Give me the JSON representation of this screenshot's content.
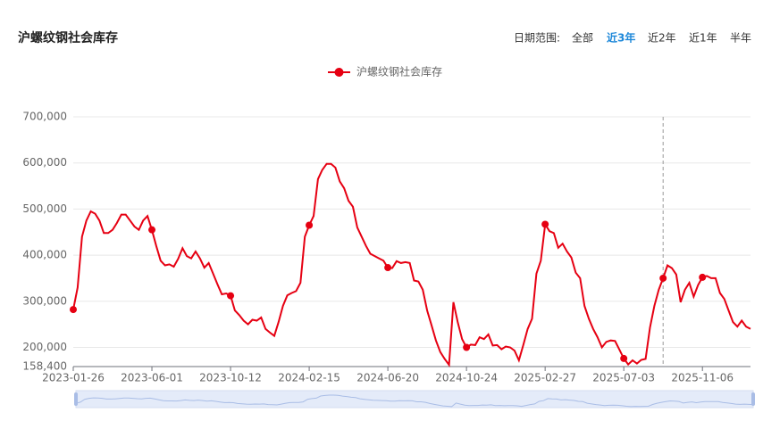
{
  "chart_data": {
    "type": "line",
    "title": "沪螺纹钢社会库存",
    "date_range": {
      "label": "日期范围:",
      "options": [
        "全部",
        "近3年",
        "近2年",
        "近1年",
        "半年"
      ],
      "selected_index": 1
    },
    "categories": [
      "2023-01-26",
      null,
      null,
      null,
      null,
      null,
      null,
      null,
      null,
      null,
      null,
      null,
      null,
      null,
      null,
      null,
      null,
      null,
      "2023-06-01",
      null,
      null,
      null,
      null,
      null,
      null,
      null,
      null,
      null,
      null,
      null,
      null,
      null,
      null,
      null,
      null,
      null,
      "2023-10-12",
      null,
      null,
      null,
      null,
      null,
      null,
      null,
      null,
      null,
      null,
      null,
      null,
      null,
      null,
      null,
      null,
      null,
      "2024-02-15",
      null,
      null,
      null,
      null,
      null,
      null,
      null,
      null,
      null,
      null,
      null,
      null,
      null,
      null,
      null,
      null,
      null,
      "2024-06-20",
      null,
      null,
      null,
      null,
      null,
      null,
      null,
      null,
      null,
      null,
      null,
      null,
      null,
      null,
      null,
      null,
      null,
      "2024-10-24",
      null,
      null,
      null,
      null,
      null,
      null,
      null,
      null,
      null,
      null,
      null,
      null,
      null,
      null,
      null,
      null,
      null,
      "2025-02-27",
      null,
      null,
      null,
      null,
      null,
      null,
      null,
      null,
      null,
      null,
      null,
      null,
      null,
      null,
      null,
      null,
      null,
      "2025-07-03",
      null,
      null,
      null,
      null,
      null,
      null,
      null,
      null,
      null,
      null,
      null,
      null,
      null,
      null,
      null,
      null,
      null,
      "2025-11-06",
      null,
      null,
      null,
      null,
      null,
      null,
      null,
      null,
      null,
      null,
      null
    ],
    "series": [
      {
        "name": "沪螺纹钢社会库存",
        "color": "#e60012",
        "values": [
          282000,
          330000,
          440000,
          475000,
          495000,
          490000,
          475000,
          448000,
          448000,
          455000,
          470000,
          488000,
          488000,
          475000,
          462000,
          455000,
          475000,
          485000,
          455000,
          420000,
          388000,
          378000,
          380000,
          375000,
          392000,
          415000,
          398000,
          393000,
          408000,
          393000,
          373000,
          383000,
          360000,
          337000,
          315000,
          317000,
          312000,
          280000,
          270000,
          258000,
          250000,
          260000,
          258000,
          265000,
          240000,
          232000,
          225000,
          255000,
          290000,
          313000,
          318000,
          322000,
          340000,
          440000,
          465000,
          485000,
          565000,
          585000,
          598000,
          598000,
          590000,
          560000,
          545000,
          518000,
          505000,
          460000,
          440000,
          420000,
          403000,
          398000,
          393000,
          388000,
          373000,
          372000,
          387000,
          383000,
          385000,
          383000,
          345000,
          343000,
          325000,
          280000,
          248000,
          215000,
          190000,
          175000,
          162000,
          298000,
          255000,
          218000,
          200000,
          206000,
          205000,
          222000,
          218000,
          228000,
          204000,
          205000,
          196000,
          202000,
          200000,
          193000,
          172000,
          205000,
          240000,
          262000,
          360000,
          388000,
          467000,
          452000,
          448000,
          416000,
          425000,
          408000,
          395000,
          362000,
          350000,
          290000,
          262000,
          240000,
          222000,
          200000,
          212000,
          215000,
          214000,
          195000,
          176000,
          163000,
          172000,
          165000,
          173000,
          175000,
          243000,
          290000,
          325000,
          350000,
          378000,
          372000,
          358000,
          298000,
          325000,
          340000,
          310000,
          335000,
          352000,
          355000,
          350000,
          350000,
          318000,
          305000,
          280000,
          255000,
          245000,
          258000,
          245000,
          240000
        ]
      }
    ],
    "ylim": [
      158400,
      700000
    ],
    "yticks": [
      {
        "value": 158400,
        "label": "158,400"
      },
      {
        "value": 200000,
        "label": "200,000"
      },
      {
        "value": 300000,
        "label": "300,000"
      },
      {
        "value": 400000,
        "label": "400,000"
      },
      {
        "value": 500000,
        "label": "500,000"
      },
      {
        "value": 600000,
        "label": "600,000"
      },
      {
        "value": 700000,
        "label": "700,000"
      }
    ],
    "grid": true,
    "legend": "top"
  }
}
